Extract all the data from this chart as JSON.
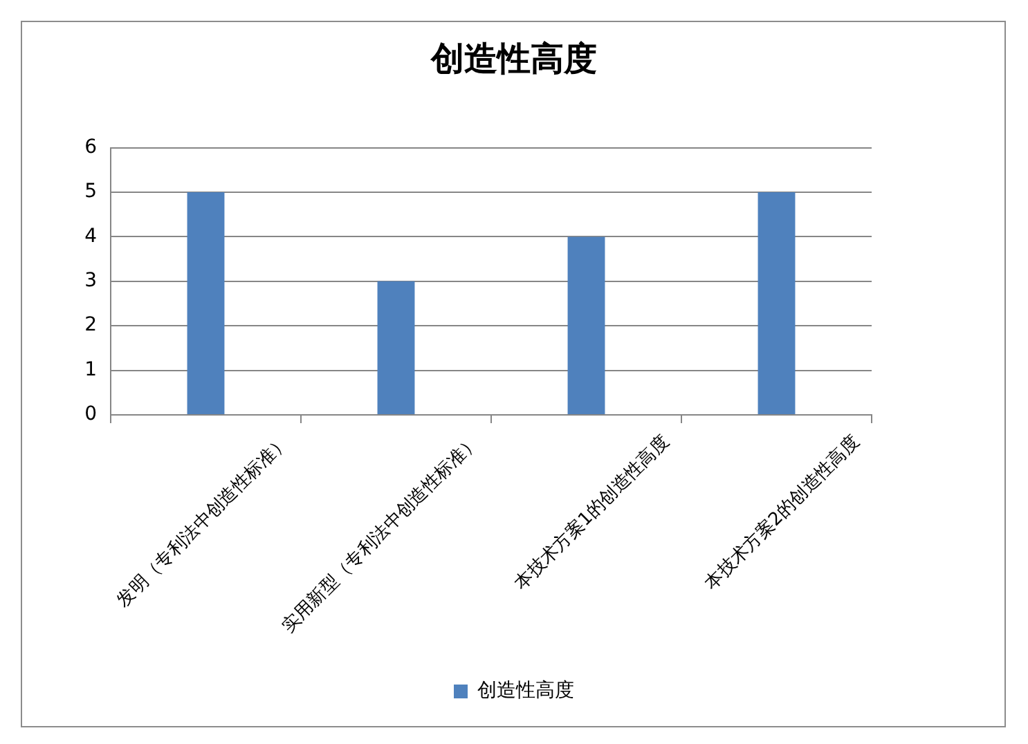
{
  "chart_data": {
    "type": "bar",
    "title": "创造性高度",
    "categories": [
      "发明（专利法中创造性标准）",
      "实用新型（专利法中创造性标准）",
      "本技术方案1的创造性高度",
      "本技术方案2的创造性高度"
    ],
    "series": [
      {
        "name": "创造性高度",
        "color": "#4f81bd",
        "values": [
          5,
          3,
          4,
          5
        ]
      }
    ],
    "ylim": [
      0,
      6
    ],
    "yticks": [
      0,
      1,
      2,
      3,
      4,
      5,
      6
    ],
    "grid": "y",
    "legend": "bottom"
  }
}
